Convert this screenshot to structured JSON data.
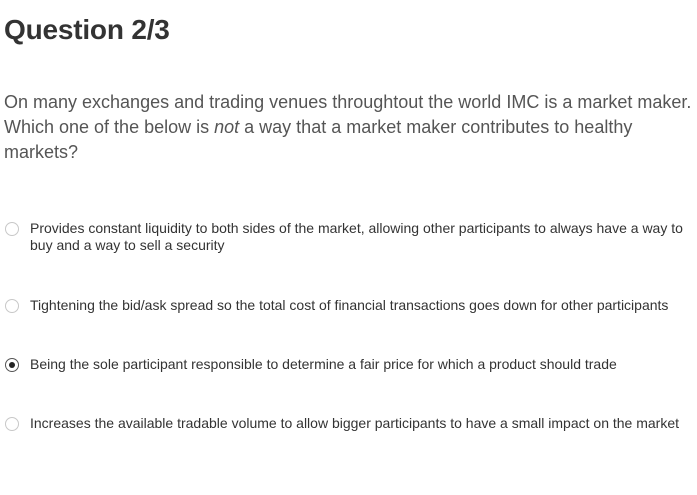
{
  "title": "Question 2/3",
  "question": {
    "before": "On many exchanges and trading venues throughtout the world IMC is a market maker. Which one of the below is ",
    "emphasis": "not",
    "after": " a way that a market maker contributes to healthy markets?"
  },
  "options": [
    {
      "label": "Provides constant liquidity to both sides of the market, allowing other participants to always have a way to buy and a way to sell a security",
      "selected": false
    },
    {
      "label": "Tightening the bid/ask spread so the total cost of financial transactions goes down for other participants",
      "selected": false
    },
    {
      "label": "Being the sole participant responsible to determine a fair price for which a product should trade",
      "selected": true
    },
    {
      "label": "Increases the available tradable volume to allow bigger participants to have a small impact on the market",
      "selected": false
    }
  ]
}
